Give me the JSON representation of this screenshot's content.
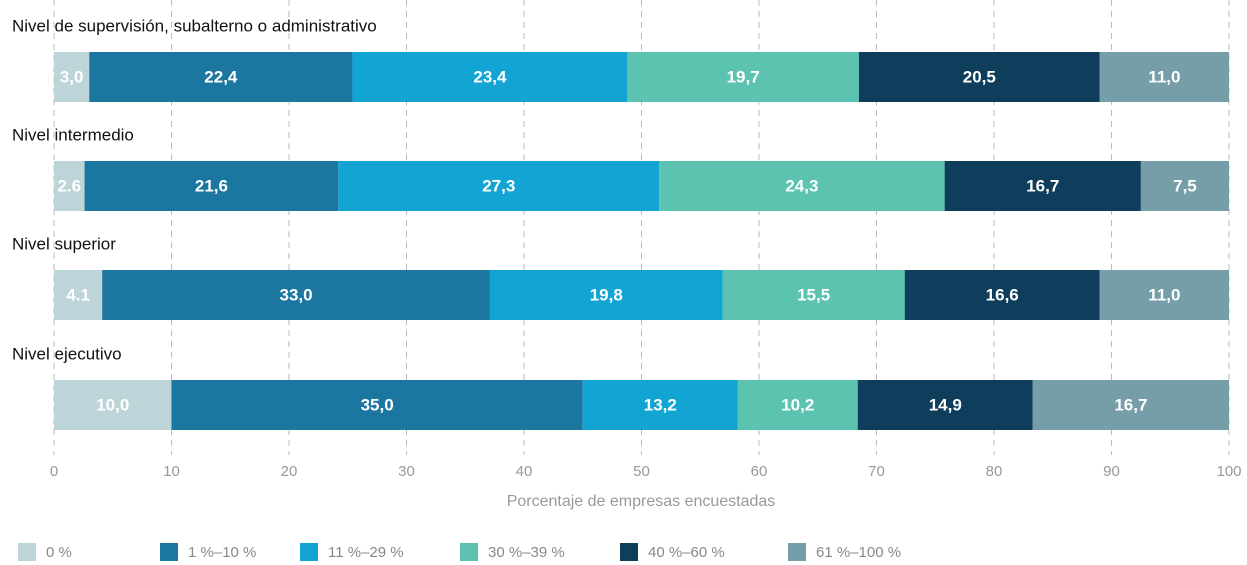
{
  "chart_data": {
    "type": "stacked-barh",
    "categories": [
      "Nivel de supervisión, subalterno o administrativo",
      "Nivel intermedio",
      "Nivel superior",
      "Nivel ejecutivo"
    ],
    "series": [
      {
        "name": "0 %",
        "color": "#bdd4d9",
        "values": [
          3.0,
          2.6,
          4.1,
          10.0
        ],
        "value_labels": [
          "3,0",
          "2.6",
          "4.1",
          "10,0"
        ]
      },
      {
        "name": "1 %–10 %",
        "color": "#1b76a0",
        "values": [
          22.4,
          21.6,
          33.0,
          35.0
        ],
        "value_labels": [
          "22,4",
          "21,6",
          "33,0",
          "35,0"
        ]
      },
      {
        "name": "11 %–29 %",
        "color": "#12a5d3",
        "values": [
          23.4,
          27.3,
          19.8,
          13.2
        ],
        "value_labels": [
          "23,4",
          "27,3",
          "19,8",
          "13,2"
        ]
      },
      {
        "name": "30 %–39 %",
        "color": "#5bc3b0",
        "values": [
          19.7,
          24.3,
          15.5,
          10.2
        ],
        "value_labels": [
          "19,7",
          "24,3",
          "15,5",
          "10,2"
        ]
      },
      {
        "name": "40 %–60 %",
        "color": "#0f3d5c",
        "values": [
          20.5,
          16.7,
          16.6,
          14.9
        ],
        "value_labels": [
          "20,5",
          "16,7",
          "16,6",
          "14,9"
        ]
      },
      {
        "name": "61 %–100 %",
        "color": "#769ea9",
        "values": [
          11.0,
          7.5,
          11.0,
          16.7
        ],
        "value_labels": [
          "11,0",
          "7,5",
          "11,0",
          "16,7"
        ]
      }
    ],
    "xlabel": "Porcentaje de empresas encuestadas",
    "xlim": [
      0,
      100
    ],
    "xticks": [
      0,
      10,
      20,
      30,
      40,
      50,
      60,
      70,
      80,
      90,
      100
    ],
    "grid": true,
    "legend": "bottom"
  }
}
